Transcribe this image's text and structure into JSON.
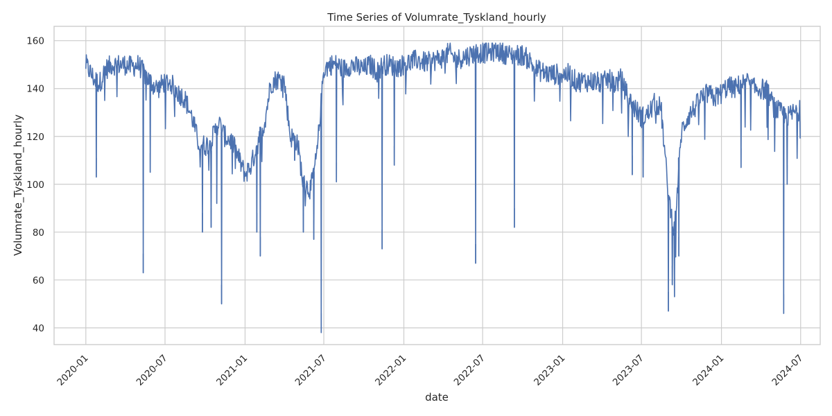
{
  "chart_data": {
    "type": "line",
    "title": "Time Series of Volumrate_Tyskland_hourly",
    "xlabel": "date",
    "ylabel": "Volumrate_Tyskland_hourly",
    "xlim": [
      "2019-10-20",
      "2024-08-15"
    ],
    "ylim": [
      33,
      166
    ],
    "grid": true,
    "line_color": "#4c72b0",
    "x_ticks": [
      "2020-01",
      "2020-07",
      "2021-01",
      "2021-07",
      "2022-01",
      "2022-07",
      "2023-01",
      "2023-07",
      "2024-01",
      "2024-07"
    ],
    "y_ticks": [
      40,
      60,
      80,
      100,
      120,
      140,
      160
    ],
    "series": [
      {
        "x": [
          "2020-01-01",
          "2020-01-20",
          "2020-02-01",
          "2020-02-15",
          "2020-03-01",
          "2020-03-15",
          "2020-04-01",
          "2020-04-15",
          "2020-05-01",
          "2020-05-15",
          "2020-06-01",
          "2020-06-15",
          "2020-07-01",
          "2020-07-15",
          "2020-08-01",
          "2020-08-15",
          "2020-09-01",
          "2020-09-15",
          "2020-10-01",
          "2020-10-15",
          "2020-11-01",
          "2020-11-15",
          "2020-12-01",
          "2020-12-15",
          "2021-01-01",
          "2021-01-15",
          "2021-02-01",
          "2021-02-15",
          "2021-03-01",
          "2021-03-15",
          "2021-04-01",
          "2021-04-15",
          "2021-05-01",
          "2021-05-15",
          "2021-06-01",
          "2021-06-15",
          "2021-07-01",
          "2021-07-15",
          "2021-08-01",
          "2021-08-15",
          "2021-09-01",
          "2021-09-15",
          "2021-10-01",
          "2021-10-15",
          "2021-11-01",
          "2021-11-15",
          "2021-12-01",
          "2021-12-15",
          "2022-01-01",
          "2022-01-15",
          "2022-02-01",
          "2022-02-15",
          "2022-03-01",
          "2022-03-15",
          "2022-04-01",
          "2022-04-15",
          "2022-05-01",
          "2022-05-15",
          "2022-06-01",
          "2022-06-15",
          "2022-07-01",
          "2022-07-15",
          "2022-08-01",
          "2022-08-15",
          "2022-09-01",
          "2022-09-15",
          "2022-10-01",
          "2022-10-15",
          "2022-11-01",
          "2022-11-15",
          "2022-12-01",
          "2022-12-15",
          "2023-01-01",
          "2023-01-15",
          "2023-02-01",
          "2023-02-15",
          "2023-03-01",
          "2023-03-15",
          "2023-04-01",
          "2023-04-15",
          "2023-05-01",
          "2023-05-15",
          "2023-06-01",
          "2023-06-15",
          "2023-07-01",
          "2023-07-15",
          "2023-08-01",
          "2023-08-15",
          "2023-09-01",
          "2023-09-15",
          "2023-10-01",
          "2023-10-15",
          "2023-11-01",
          "2023-11-15",
          "2023-12-01",
          "2023-12-15",
          "2024-01-01",
          "2024-01-15",
          "2024-02-01",
          "2024-02-15",
          "2024-03-01",
          "2024-03-15",
          "2024-04-01",
          "2024-04-15",
          "2024-05-01",
          "2024-05-15",
          "2024-06-01",
          "2024-06-15",
          "2024-06-30"
        ],
        "values": [
          150,
          144,
          142,
          148,
          150,
          150,
          150,
          149,
          150,
          146,
          142,
          140,
          143,
          142,
          138,
          136,
          128,
          118,
          116,
          118,
          126,
          120,
          118,
          112,
          104,
          108,
          118,
          126,
          142,
          144,
          143,
          120,
          118,
          100,
          98,
          112,
          148,
          150,
          150,
          148,
          150,
          149,
          148,
          150,
          147,
          150,
          150,
          149,
          150,
          151,
          152,
          151,
          151,
          152,
          153,
          155,
          152,
          153,
          154,
          155,
          155,
          155,
          156,
          155,
          154,
          154,
          154,
          152,
          148,
          147,
          146,
          146,
          146,
          146,
          143,
          143,
          143,
          143,
          142,
          144,
          142,
          144,
          136,
          132,
          128,
          129,
          134,
          132,
          95,
          80,
          122,
          128,
          132,
          136,
          138,
          136,
          138,
          141,
          140,
          142,
          143,
          140,
          140,
          139,
          132,
          130,
          128,
          130,
          131
        ]
      }
    ],
    "dips": [
      {
        "x": "2020-01-25",
        "y": 103
      },
      {
        "x": "2020-05-12",
        "y": 63
      },
      {
        "x": "2020-05-28",
        "y": 105
      },
      {
        "x": "2020-09-25",
        "y": 80
      },
      {
        "x": "2020-10-15",
        "y": 82
      },
      {
        "x": "2020-10-28",
        "y": 92
      },
      {
        "x": "2020-11-08",
        "y": 50
      },
      {
        "x": "2021-01-28",
        "y": 80
      },
      {
        "x": "2021-02-05",
        "y": 70
      },
      {
        "x": "2021-04-25",
        "y": 110
      },
      {
        "x": "2021-05-15",
        "y": 80
      },
      {
        "x": "2021-06-08",
        "y": 77
      },
      {
        "x": "2021-06-25",
        "y": 38
      },
      {
        "x": "2021-07-30",
        "y": 101
      },
      {
        "x": "2021-11-12",
        "y": 73
      },
      {
        "x": "2021-12-10",
        "y": 108
      },
      {
        "x": "2022-06-15",
        "y": 67
      },
      {
        "x": "2022-09-12",
        "y": 82
      },
      {
        "x": "2023-06-10",
        "y": 104
      },
      {
        "x": "2023-07-05",
        "y": 103
      },
      {
        "x": "2023-09-01",
        "y": 47
      },
      {
        "x": "2023-09-10",
        "y": 58
      },
      {
        "x": "2023-09-15",
        "y": 53
      },
      {
        "x": "2023-09-25",
        "y": 70
      },
      {
        "x": "2024-02-15",
        "y": 107
      },
      {
        "x": "2024-05-23",
        "y": 46
      },
      {
        "x": "2024-05-31",
        "y": 100
      }
    ]
  }
}
